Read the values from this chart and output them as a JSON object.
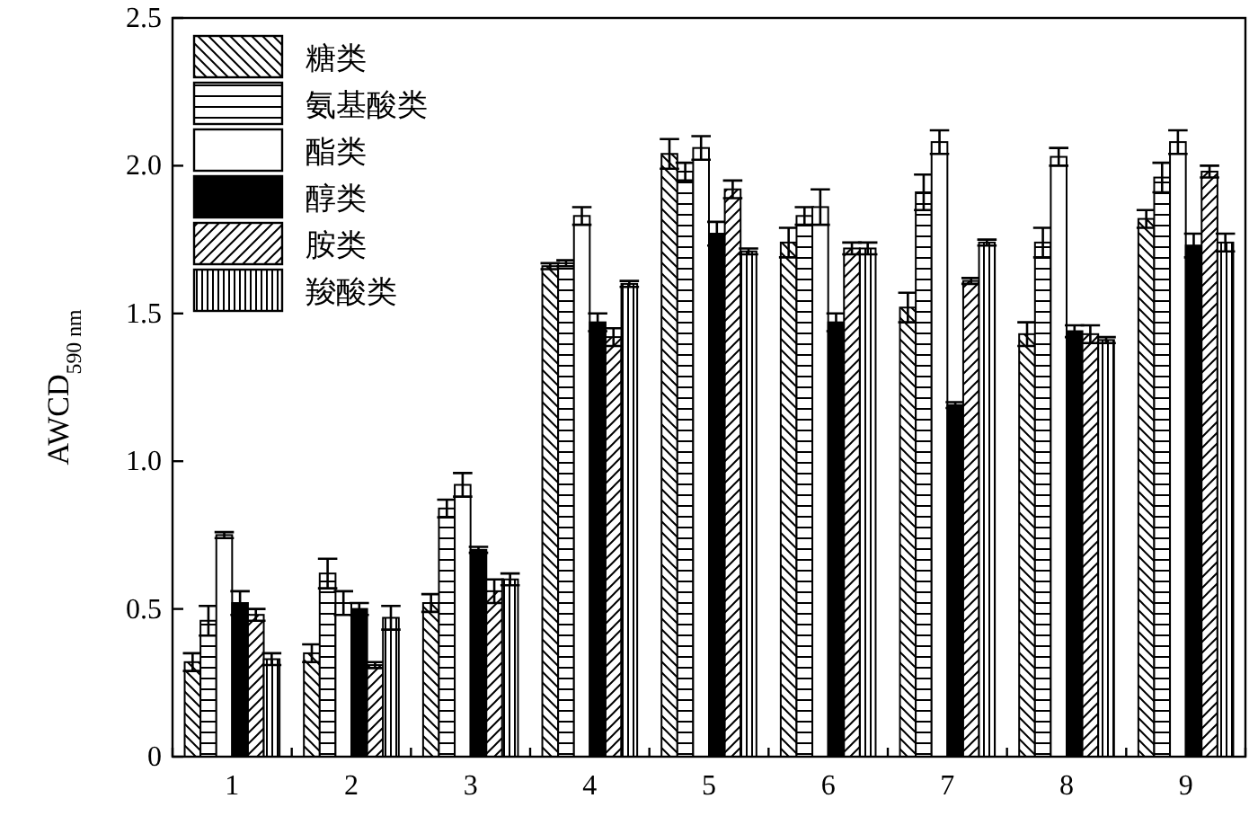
{
  "chart_data": {
    "type": "bar",
    "ylabel": "AWCD$_{590 nm}$",
    "categories": [
      "1",
      "2",
      "3",
      "4",
      "5",
      "6",
      "7",
      "8",
      "9"
    ],
    "series": [
      {
        "name": "糖类",
        "color": "#000000",
        "values": [
          0.32,
          0.35,
          0.52,
          1.66,
          2.04,
          1.74,
          1.52,
          1.43,
          1.82
        ],
        "errors": [
          0.03,
          0.03,
          0.03,
          0.01,
          0.05,
          0.05,
          0.05,
          0.04,
          0.03
        ]
      },
      {
        "name": "氨基酸类",
        "color": "#000000",
        "values": [
          0.46,
          0.62,
          0.84,
          1.67,
          1.98,
          1.83,
          1.91,
          1.74,
          1.96
        ],
        "errors": [
          0.05,
          0.05,
          0.03,
          0.01,
          0.03,
          0.03,
          0.06,
          0.05,
          0.05
        ]
      },
      {
        "name": "酯类",
        "color": "#ffffff",
        "values": [
          0.75,
          0.52,
          0.92,
          1.83,
          2.06,
          1.86,
          2.08,
          2.03,
          2.08
        ],
        "errors": [
          0.01,
          0.04,
          0.04,
          0.03,
          0.04,
          0.06,
          0.04,
          0.03,
          0.04
        ]
      },
      {
        "name": "醇类",
        "color": "#000000",
        "values": [
          0.52,
          0.5,
          0.7,
          1.47,
          1.77,
          1.47,
          1.19,
          1.44,
          1.73
        ],
        "errors": [
          0.04,
          0.02,
          0.01,
          0.03,
          0.04,
          0.03,
          0.01,
          0.02,
          0.04
        ]
      },
      {
        "name": "胺类",
        "color": "#000000",
        "values": [
          0.48,
          0.31,
          0.56,
          1.42,
          1.92,
          1.72,
          1.61,
          1.43,
          1.98
        ],
        "errors": [
          0.02,
          0.01,
          0.04,
          0.03,
          0.03,
          0.02,
          0.01,
          0.03,
          0.02
        ]
      },
      {
        "name": "羧酸类",
        "color": "#000000",
        "values": [
          0.33,
          0.47,
          0.6,
          1.6,
          1.71,
          1.72,
          1.74,
          1.41,
          1.74
        ],
        "errors": [
          0.02,
          0.04,
          0.02,
          0.01,
          0.01,
          0.02,
          0.01,
          0.01,
          0.03
        ]
      }
    ],
    "ylim": [
      0,
      2.5
    ],
    "yticks": [
      0,
      0.5,
      {
        "value": 1,
        "label": "1.0"
      },
      1.5,
      {
        "value": 2,
        "label": "2.0"
      },
      2.5
    ],
    "grid": false,
    "legend": "top left"
  }
}
